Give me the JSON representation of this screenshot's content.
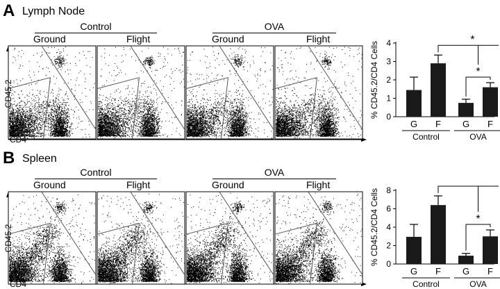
{
  "panels": [
    {
      "letter": "A",
      "title": "Lymph Node",
      "flow": {
        "groups": [
          "Control",
          "OVA"
        ],
        "conditions": [
          "Ground",
          "Flight",
          "Ground",
          "Flight"
        ],
        "x_axis_label": "CD4",
        "y_axis_label": "CD45.2"
      }
    },
    {
      "letter": "B",
      "title": "Spleen",
      "flow": {
        "groups": [
          "Control",
          "OVA"
        ],
        "conditions": [
          "Ground",
          "Flight",
          "Ground",
          "Flight"
        ],
        "x_axis_label": "CD4",
        "y_axis_label": "CD45.2"
      }
    }
  ],
  "chart_data": [
    {
      "type": "bar",
      "panel": "A",
      "categories": [
        "G",
        "F",
        "G",
        "F"
      ],
      "groups": [
        "Control",
        "OVA"
      ],
      "values": [
        1.45,
        2.9,
        0.75,
        1.6
      ],
      "errors": [
        0.7,
        0.45,
        0.2,
        0.25
      ],
      "ylabel": "% CD45.2/CD4 Cells",
      "ylim": [
        0,
        4
      ],
      "yticks": [
        "0",
        "1",
        "2",
        "3",
        "4"
      ],
      "significance": [
        "*",
        "*"
      ],
      "bar_color": "#1a1a1a"
    },
    {
      "type": "bar",
      "panel": "B",
      "categories": [
        "G",
        "F",
        "G",
        "F"
      ],
      "groups": [
        "Control",
        "OVA"
      ],
      "values": [
        2.95,
        6.4,
        0.9,
        3.0
      ],
      "errors": [
        1.35,
        1.0,
        0.25,
        0.7
      ],
      "ylabel": "% CD45.2/CD4 Cells",
      "ylim": [
        0,
        8
      ],
      "yticks": [
        "0",
        "2",
        "4",
        "6",
        "8"
      ],
      "significance": [
        "*",
        "*"
      ],
      "bar_color": "#1a1a1a"
    }
  ]
}
